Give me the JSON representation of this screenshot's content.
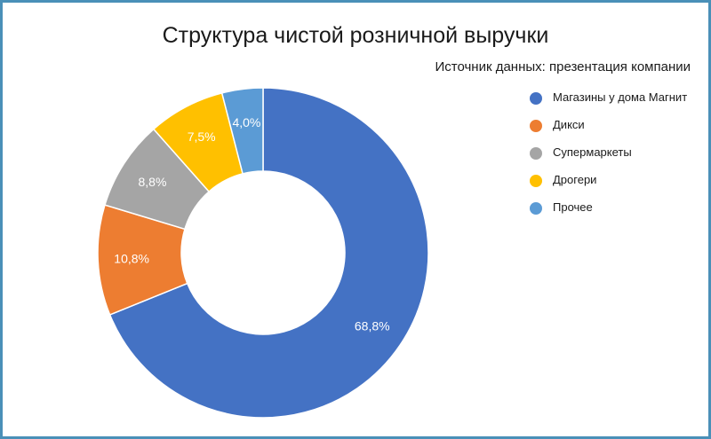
{
  "chart_data": {
    "type": "pie",
    "title": "Структура чистой розничной выручки",
    "subtitle": "Источник данных: презентация компании",
    "legend_position": "right",
    "hole": true,
    "slices": [
      {
        "name": "Магазины у дома Магнит",
        "value": 68.8,
        "label": "68,8%",
        "color": "#4472c4"
      },
      {
        "name": "Дикси",
        "value": 10.8,
        "label": "10,8%",
        "color": "#ed7d31"
      },
      {
        "name": "Супермаркеты",
        "value": 8.8,
        "label": "8,8%",
        "color": "#a5a5a5"
      },
      {
        "name": "Дрогери",
        "value": 7.5,
        "label": "7,5%",
        "color": "#ffc000"
      },
      {
        "name": "Прочее",
        "value": 4.0,
        "label": "4,0%",
        "color": "#5b9bd5"
      }
    ]
  }
}
